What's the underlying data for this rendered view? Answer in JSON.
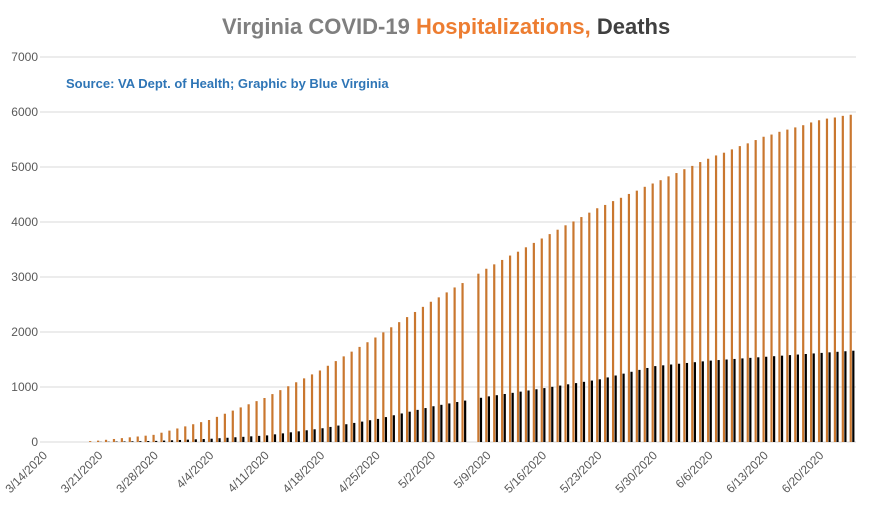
{
  "chart_data": {
    "type": "bar",
    "title": [
      "Virginia COVID-19 ",
      "Hospitalizations,",
      " Deaths"
    ],
    "title_colors": [
      "#7f7f7f",
      "#ed7d31",
      "#404040"
    ],
    "subtitle": "Source: VA Dept. of Health; Graphic by Blue Virginia",
    "categories": [
      "3/14/2020",
      null,
      null,
      null,
      null,
      null,
      null,
      "3/21/2020",
      null,
      null,
      null,
      null,
      null,
      null,
      "3/28/2020",
      null,
      null,
      null,
      null,
      null,
      null,
      "4/4/2020",
      null,
      null,
      null,
      null,
      null,
      null,
      "4/11/2020",
      null,
      null,
      null,
      null,
      null,
      null,
      "4/18/2020",
      null,
      null,
      null,
      null,
      null,
      null,
      "4/25/2020",
      null,
      null,
      null,
      null,
      null,
      null,
      "5/2/2020",
      null,
      null,
      null,
      null,
      null,
      null,
      "5/9/2020",
      null,
      null,
      null,
      null,
      null,
      null,
      "5/16/2020",
      null,
      null,
      null,
      null,
      null,
      null,
      "5/23/2020",
      null,
      null,
      null,
      null,
      null,
      null,
      "5/30/2020",
      null,
      null,
      null,
      null,
      null,
      null,
      "6/6/2020",
      null,
      null,
      null,
      null,
      null,
      null,
      "6/13/2020",
      null,
      null,
      null,
      null,
      null,
      null,
      "6/20/2020",
      null,
      null,
      null,
      null
    ],
    "series": [
      {
        "name": "Hospitalizations",
        "color": "#c9772f",
        "values": [
          null,
          null,
          null,
          null,
          null,
          null,
          17,
          25,
          40,
          55,
          70,
          85,
          100,
          115,
          130,
          169,
          207,
          246,
          284,
          323,
          361,
          400,
          457,
          514,
          571,
          629,
          686,
          743,
          800,
          871,
          943,
          1014,
          1086,
          1157,
          1229,
          1300,
          1386,
          1471,
          1557,
          1643,
          1729,
          1814,
          1900,
          1993,
          2086,
          2179,
          2271,
          2364,
          2457,
          2550,
          2630,
          2720,
          2810,
          2890,
          null,
          3060,
          3150,
          3230,
          3310,
          3390,
          3460,
          3540,
          3620,
          3700,
          3780,
          3860,
          3940,
          4010,
          4090,
          4170,
          4250,
          4310,
          4380,
          4440,
          4510,
          4570,
          4640,
          4700,
          4760,
          4830,
          4890,
          4960,
          5020,
          5090,
          5150,
          5210,
          5260,
          5320,
          5380,
          5430,
          5490,
          5550,
          5590,
          5640,
          5680,
          5720,
          5760,
          5810,
          5850,
          5880,
          5900,
          5930,
          5950
        ]
      },
      {
        "name": "Deaths",
        "color": "#000000",
        "values": [
          null,
          null,
          null,
          null,
          null,
          null,
          null,
          3,
          5,
          8,
          10,
          13,
          15,
          18,
          20,
          26,
          31,
          37,
          43,
          49,
          54,
          60,
          69,
          77,
          86,
          94,
          103,
          111,
          120,
          139,
          157,
          176,
          194,
          213,
          231,
          250,
          274,
          299,
          323,
          347,
          371,
          396,
          420,
          453,
          486,
          519,
          551,
          584,
          617,
          650,
          676,
          701,
          727,
          753,
          null,
          804,
          830,
          851,
          873,
          894,
          916,
          937,
          959,
          980,
          1003,
          1026,
          1049,
          1071,
          1094,
          1117,
          1140,
          1174,
          1209,
          1243,
          1277,
          1311,
          1346,
          1380,
          1394,
          1409,
          1423,
          1437,
          1451,
          1466,
          1480,
          1490,
          1500,
          1510,
          1520,
          1530,
          1540,
          1550,
          1560,
          1570,
          1580,
          1590,
          1600,
          1610,
          1620,
          1630,
          1640,
          1650,
          1660
        ]
      }
    ],
    "ylim": [
      0,
      7000
    ],
    "yticks": [
      0,
      1000,
      2000,
      3000,
      4000,
      5000,
      6000,
      7000
    ],
    "grid": true
  }
}
